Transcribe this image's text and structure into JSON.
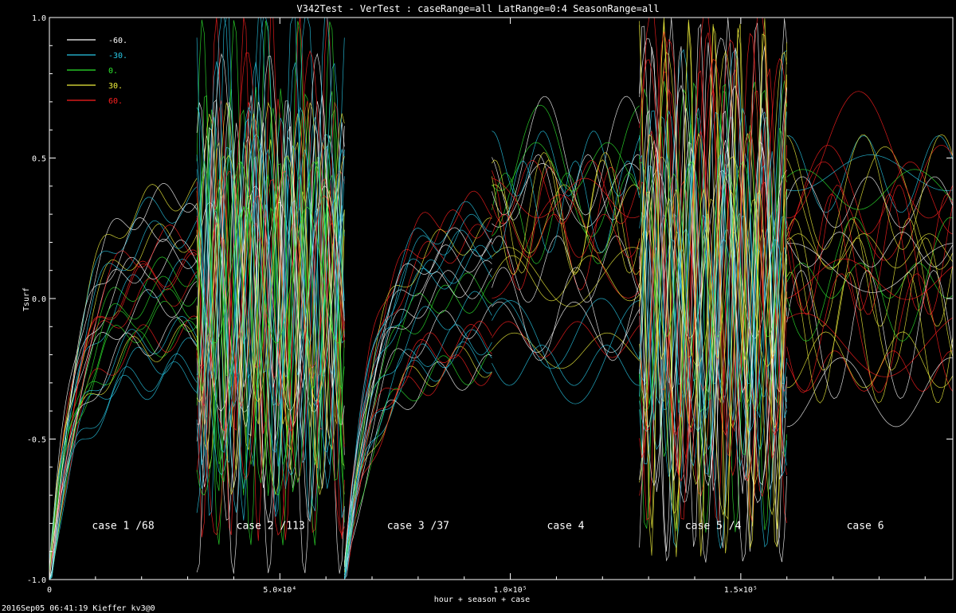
{
  "chart_data": {
    "type": "scatter",
    "title": "V342Test - VerTest : caseRange=all LatRange=0:4  SeasonRange=all",
    "xlabel": "hour + season + case",
    "ylabel": "Tsurf",
    "xlim": [
      0,
      196000
    ],
    "ylim": [
      -1.0,
      1.0
    ],
    "x_ticks": [
      {
        "value": 0,
        "label": "0"
      },
      {
        "value": 50000,
        "label": "5.0×10⁴"
      },
      {
        "value": 100000,
        "label": "1.0×10⁵"
      },
      {
        "value": 150000,
        "label": "1.5×10⁵"
      }
    ],
    "y_ticks": [
      {
        "value": -1.0,
        "label": "-1.0"
      },
      {
        "value": -0.5,
        "label": "-0.5"
      },
      {
        "value": 0.0,
        "label": "0.0"
      },
      {
        "value": 0.5,
        "label": "0.5"
      },
      {
        "value": 1.0,
        "label": "1.0"
      }
    ],
    "legend_placement": "top-left",
    "series": [
      {
        "name": "-60.",
        "color": "#ffffff"
      },
      {
        "name": "-30.",
        "color": "#28c8e6"
      },
      {
        "name": "0.",
        "color": "#2ee82e"
      },
      {
        "name": "30.",
        "color": "#f0f03c"
      },
      {
        "name": "60.",
        "color": "#ff2020"
      }
    ],
    "cases": [
      {
        "label": "case 1 /68",
        "x_start": 0,
        "x_end": 32000,
        "x_label": 16000
      },
      {
        "label": "case 2 /113",
        "x_start": 32000,
        "x_end": 64000,
        "x_label": 48000
      },
      {
        "label": "case 3 /37",
        "x_start": 64000,
        "x_end": 96000,
        "x_label": 80000
      },
      {
        "label": "case 4",
        "x_start": 96000,
        "x_end": 128000,
        "x_label": 112000
      },
      {
        "label": "case 5 /4",
        "x_start": 128000,
        "x_end": 160000,
        "x_label": 144000
      },
      {
        "label": "case 6",
        "x_start": 160000,
        "x_end": 196000,
        "x_label": 177000
      }
    ],
    "case_label_y": -0.82
  },
  "footer": "2016Sep05 06:41:19 Kieffer kv3@0"
}
